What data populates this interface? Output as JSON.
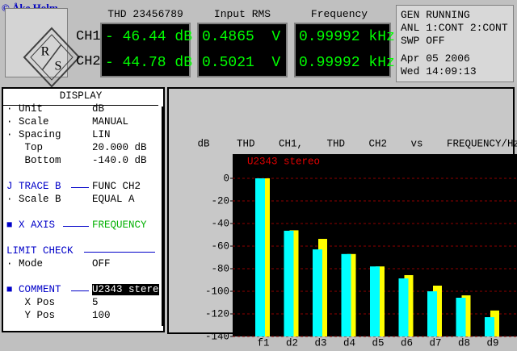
{
  "header": {
    "copyright": "© Åke Holm",
    "logo": [
      "R",
      "S"
    ]
  },
  "readings": {
    "channels": [
      "CH1",
      "CH2"
    ],
    "columns": [
      {
        "title": "THD 23456789",
        "values": [
          "- 46.44 dB",
          "- 44.78 dB"
        ]
      },
      {
        "title": "Input RMS",
        "values": [
          "0.4865  V",
          "0.5021  V"
        ]
      },
      {
        "title": "Frequency",
        "values": [
          "0.99992 kHz",
          "0.99992 kHz"
        ]
      }
    ]
  },
  "status": [
    "GEN RUNNING",
    "ANL 1:CONT 2:CONT",
    "SWP OFF",
    "Apr 05 2006",
    "Wed 14:09:13"
  ],
  "menu": {
    "title": "DISPLAY",
    "items": [
      {
        "label": "· Unit",
        "value": "dB"
      },
      {
        "label": "· Scale",
        "value": "MANUAL"
      },
      {
        "label": "· Spacing",
        "value": "LIN"
      },
      {
        "label": "   Top",
        "value": "20.000 dB"
      },
      {
        "label": "   Bottom",
        "value": "-140.0 dB"
      },
      {
        "label": "J TRACE B",
        "value": "FUNC CH2"
      },
      {
        "label": "· Scale B",
        "value": "EQUAL A"
      },
      {
        "label": "■ X AXIS",
        "value": "FREQUENCY"
      },
      {
        "label": "LIMIT CHECK"
      },
      {
        "label": "· Mode",
        "value": "OFF"
      },
      {
        "label": "■ COMMENT",
        "value": "U2343 stere"
      },
      {
        "label": "   X Pos",
        "value": "5"
      },
      {
        "label": "   Y Pos",
        "value": "100"
      }
    ]
  },
  "chart_data": {
    "type": "bar",
    "title": "THD CH1, THD CH2 vs FREQUENCY/Hz",
    "y_label": "dB",
    "annotation": "U2343 stereo",
    "categories": [
      "f1",
      "d2",
      "d3",
      "d4",
      "d5",
      "d6",
      "d7",
      "d8",
      "d9"
    ],
    "series": [
      {
        "color": "#00ffff",
        "values": [
          0,
          -46.4,
          -62.9,
          -67,
          -78,
          -88.6,
          -100,
          -105.7,
          -122.9
        ]
      },
      {
        "color": "#ffff00",
        "values": [
          0,
          -46,
          -53.6,
          -67,
          -78,
          -85.7,
          -95,
          -103.6,
          -117
        ]
      }
    ],
    "ylim": [
      -140,
      20
    ],
    "yticks": [
      0,
      -20,
      -40,
      -60,
      -80,
      -100,
      -120,
      -140
    ],
    "grid": true
  }
}
